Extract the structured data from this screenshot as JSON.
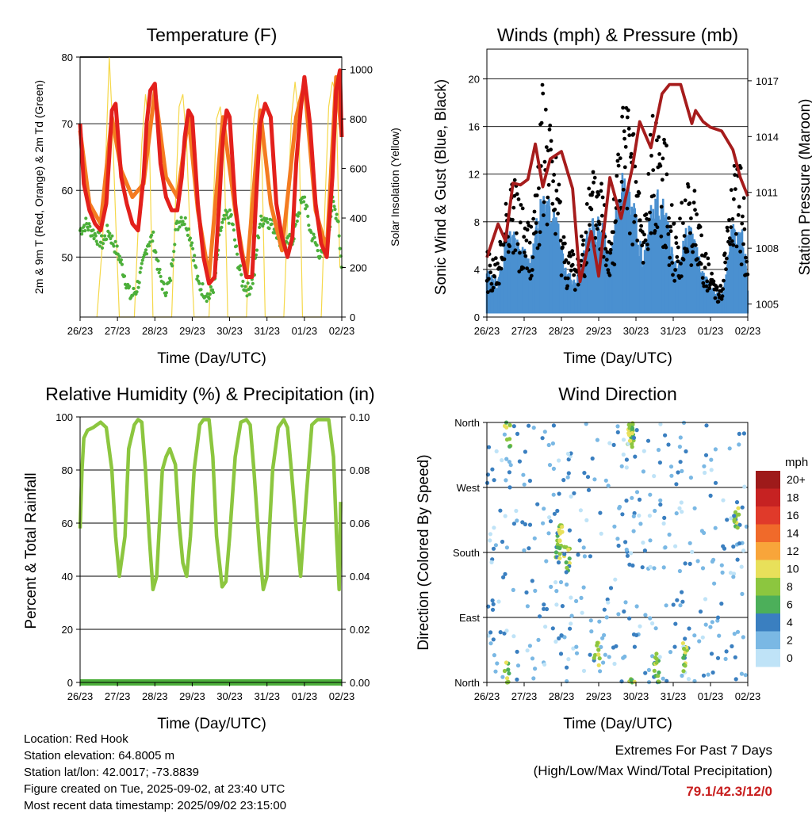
{
  "colors": {
    "t2m": "#e3201c",
    "t9m": "#f47b20",
    "td": "#4caf3a",
    "solar": "#f5d84a",
    "gust": "#000000",
    "wind": "#4a90d0",
    "pressure": "#a61c1c",
    "rh": "#8cc63f",
    "precip": "#4caf3a",
    "extremes": "#c81e1e"
  },
  "panels": {
    "temperature": {
      "title": "Temperature (F)",
      "xlabel": "Time (Day/UTC)",
      "ylabel_left": "2m & 9m T (Red, Orange) & 2m Td (Green)",
      "ylabel_right": "Solar Insolation (Yellow)"
    },
    "winds": {
      "title": "Winds (mph) & Pressure (mb)",
      "xlabel": "Time (Day/UTC)",
      "ylabel_left": "Sonic Wind & Gust (Blue, Black)",
      "ylabel_right": "Station Pressure (Maroon)"
    },
    "humidity": {
      "title": "Relative Humidity (%) & Precipitation (in)",
      "xlabel": "Time (Day/UTC)",
      "ylabel_left": "Percent & Total Rainfall"
    },
    "direction": {
      "title": "Wind Direction",
      "xlabel": "Time (Day/UTC)",
      "ylabel_left": "Direction (Colored By Speed)"
    }
  },
  "legend": {
    "title": "mph",
    "labels": [
      "20+",
      "18",
      "16",
      "14",
      "12",
      "10",
      "8",
      "6",
      "4",
      "2",
      "0"
    ],
    "colors": [
      "#9e1a1a",
      "#c62222",
      "#e03a2a",
      "#f06a2a",
      "#f8a53a",
      "#e8e05a",
      "#8cc63f",
      "#4caf5a",
      "#3a7fc0",
      "#7ab8e4",
      "#bfe3f7"
    ]
  },
  "info": {
    "location": "Location: Red Hook",
    "elevation": "Station elevation: 64.8005 m",
    "latlon": "Station lat/lon: 42.0017; -73.8839",
    "created": "Figure created on Tue, 2025-09-02, at 23:40 UTC",
    "recent": "Most recent data timestamp: 2025/09/02 23:15:00"
  },
  "extremes": {
    "heading": "Extremes For Past 7 Days",
    "subheading": "(High/Low/Max Wind/Total Precipitation)",
    "value": "79.1/42.3/12/0"
  },
  "chart_data": [
    {
      "type": "line",
      "title": "Temperature (F)",
      "xlabel": "Time (Day/UTC)",
      "x_ticks": [
        "26/23",
        "27/23",
        "28/23",
        "29/23",
        "30/23",
        "31/23",
        "01/23",
        "02/23"
      ],
      "xlim": [
        0,
        7
      ],
      "ylabel": "2m & 9m T (Red, Orange) & 2m Td (Green)",
      "ylim": [
        41,
        80
      ],
      "y_ticks": [
        "50",
        "60",
        "70",
        "80"
      ],
      "y_tick_values": [
        50,
        60,
        70,
        80
      ],
      "y2label": "Solar Insolation (Yellow)",
      "y2lim": [
        0,
        1050
      ],
      "y2_ticks": [
        "0",
        "200",
        "400",
        "600",
        "800",
        "1000"
      ],
      "y2_tick_values": [
        0,
        200,
        400,
        600,
        800,
        1000
      ],
      "grid": true,
      "series": [
        {
          "name": "2m T",
          "axis": "left",
          "x": [
            0,
            0.1,
            0.25,
            0.4,
            0.55,
            0.7,
            0.78,
            0.85,
            0.95,
            1.1,
            1.25,
            1.4,
            1.55,
            1.7,
            1.78,
            1.88,
            2.0,
            2.15,
            2.3,
            2.45,
            2.6,
            2.72,
            2.8,
            2.9,
            3.0,
            3.15,
            3.3,
            3.45,
            3.6,
            3.72,
            3.82,
            3.92,
            4.0,
            4.15,
            4.3,
            4.45,
            4.6,
            4.72,
            4.82,
            4.95,
            5.1,
            5.25,
            5.4,
            5.55,
            5.68,
            5.78,
            5.9,
            6.0,
            6.15,
            6.3,
            6.45,
            6.6,
            6.75,
            6.85,
            6.95,
            7.0
          ],
          "y": [
            70,
            61,
            57,
            55,
            54,
            58,
            65,
            72,
            73,
            62,
            58,
            55,
            54,
            62,
            70,
            75,
            76,
            64,
            59,
            57,
            57,
            62,
            68,
            72,
            71,
            58,
            50,
            46,
            47,
            58,
            68,
            72,
            71,
            58,
            51,
            47,
            47,
            60,
            70,
            73,
            71,
            58,
            53,
            50,
            53,
            64,
            72,
            77,
            70,
            58,
            52,
            50,
            62,
            75,
            78,
            68
          ]
        },
        {
          "name": "9m T",
          "axis": "left",
          "x": [
            0,
            0.25,
            0.55,
            0.85,
            1.1,
            1.4,
            1.7,
            2.0,
            2.3,
            2.6,
            2.9,
            3.15,
            3.45,
            3.82,
            4.15,
            4.45,
            4.82,
            5.1,
            5.4,
            5.78,
            6.0,
            6.3,
            6.6,
            6.85,
            7.0
          ],
          "y": [
            69,
            58,
            55,
            71,
            63,
            59,
            61,
            75,
            62,
            59,
            71,
            57,
            47,
            71,
            57,
            47,
            72,
            58,
            51,
            71,
            76,
            57,
            51,
            77,
            68
          ]
        },
        {
          "name": "2m Td",
          "axis": "left",
          "x": [
            0,
            0.15,
            0.3,
            0.45,
            0.6,
            0.75,
            0.9,
            1.05,
            1.2,
            1.35,
            1.5,
            1.65,
            1.8,
            1.95,
            2.1,
            2.25,
            2.4,
            2.55,
            2.7,
            2.85,
            3.0,
            3.15,
            3.3,
            3.45,
            3.6,
            3.75,
            3.9,
            4.05,
            4.2,
            4.35,
            4.5,
            4.65,
            4.8,
            4.95,
            5.1,
            5.25,
            5.4,
            5.55,
            5.7,
            5.85,
            6.0,
            6.15,
            6.3,
            6.45,
            6.6,
            6.75,
            6.9,
            7.0
          ],
          "y": [
            54,
            55,
            54,
            53,
            52,
            54,
            52,
            50,
            47,
            44,
            45,
            48,
            52,
            53,
            48,
            45,
            46,
            54,
            56,
            55,
            52,
            46,
            45,
            44,
            46,
            54,
            56,
            56,
            50,
            46,
            45,
            47,
            55,
            56,
            55,
            54,
            52,
            52,
            53,
            57,
            59,
            54,
            52,
            50,
            52,
            58,
            56,
            48
          ]
        },
        {
          "name": "Solar Insolation",
          "axis": "right",
          "x": [
            0.45,
            0.6,
            0.7,
            0.78,
            0.86,
            0.95,
            1.05,
            1.45,
            1.55,
            1.65,
            1.75,
            1.85,
            1.95,
            2.45,
            2.55,
            2.65,
            2.75,
            2.85,
            2.95,
            3.05,
            3.45,
            3.55,
            3.65,
            3.75,
            3.85,
            3.95,
            4.45,
            4.55,
            4.65,
            4.75,
            4.85,
            4.95,
            5.45,
            5.55,
            5.65,
            5.75,
            5.85,
            5.95,
            6.45,
            6.55,
            6.65,
            6.75,
            6.85,
            6.95
          ],
          "y": [
            0,
            300,
            700,
            1050,
            800,
            400,
            0,
            0,
            350,
            700,
            900,
            750,
            0,
            0,
            450,
            850,
            900,
            700,
            300,
            0,
            0,
            400,
            800,
            850,
            700,
            0,
            0,
            450,
            800,
            900,
            750,
            0,
            0,
            400,
            800,
            950,
            800,
            0,
            0,
            450,
            850,
            950,
            900,
            200
          ]
        }
      ]
    },
    {
      "type": "scatter",
      "title": "Winds (mph) & Pressure (mb)",
      "xlabel": "Time (Day/UTC)",
      "x_ticks": [
        "26/23",
        "27/23",
        "28/23",
        "29/23",
        "30/23",
        "31/23",
        "01/23",
        "02/23"
      ],
      "xlim": [
        0,
        7
      ],
      "ylabel": "Sonic Wind & Gust (Blue, Black)",
      "ylim": [
        0,
        22.5
      ],
      "y_ticks": [
        "0",
        "4",
        "8",
        "12",
        "16",
        "20"
      ],
      "y_tick_values": [
        0,
        4,
        8,
        12,
        16,
        20
      ],
      "y2label": "Station Pressure (Maroon)",
      "y2lim": [
        1004.3,
        1018.7
      ],
      "y2_ticks": [
        "1005",
        "1008",
        "1011",
        "1014",
        "1017"
      ],
      "y2_tick_values": [
        1005,
        1008,
        1011,
        1014,
        1017
      ],
      "grid": true,
      "series": [
        {
          "name": "Gust",
          "axis": "left",
          "envelope_x": [
            0,
            0.3,
            0.6,
            0.9,
            1.2,
            1.5,
            1.8,
            2.1,
            2.4,
            2.7,
            3.0,
            3.3,
            3.6,
            3.9,
            4.2,
            4.5,
            4.8,
            5.1,
            5.4,
            5.7,
            6.0,
            6.3,
            6.6,
            6.9,
            7.0
          ],
          "envelope_y": [
            6,
            5,
            14,
            10,
            8,
            20,
            16,
            7,
            5,
            11,
            14,
            8,
            19,
            17,
            8,
            20,
            15,
            7,
            13,
            9,
            4,
            3,
            14,
            12,
            4
          ]
        },
        {
          "name": "Sonic Wind",
          "axis": "left",
          "envelope_x": [
            0,
            0.3,
            0.6,
            0.9,
            1.2,
            1.5,
            1.8,
            2.1,
            2.4,
            2.7,
            3.0,
            3.3,
            3.6,
            3.9,
            4.2,
            4.5,
            4.8,
            5.1,
            5.4,
            5.7,
            6.0,
            6.3,
            6.6,
            6.9,
            7.0
          ],
          "envelope_y": [
            4,
            3,
            8,
            6,
            5,
            12,
            10,
            4,
            3,
            7,
            9,
            5,
            12,
            10,
            5,
            11,
            9,
            4,
            8,
            5,
            2.5,
            2,
            8,
            7,
            2
          ]
        },
        {
          "name": "Station Pressure",
          "axis": "right",
          "x": [
            0,
            0.3,
            0.5,
            0.7,
            0.9,
            1.1,
            1.3,
            1.5,
            1.7,
            2.0,
            2.3,
            2.5,
            2.8,
            3.0,
            3.3,
            3.6,
            3.9,
            4.1,
            4.4,
            4.7,
            4.9,
            5.2,
            5.5,
            5.6,
            5.8,
            6.0,
            6.3,
            6.6,
            6.8,
            7.0
          ],
          "y": [
            1007.5,
            1009.3,
            1008.4,
            1011.5,
            1011.4,
            1011.7,
            1013.6,
            1011.3,
            1012.8,
            1013.2,
            1011.2,
            1006.2,
            1008.9,
            1006.5,
            1011.8,
            1009.6,
            1012.3,
            1014.8,
            1013.4,
            1016.3,
            1016.8,
            1016.8,
            1014.7,
            1015.4,
            1014.8,
            1014.5,
            1014.3,
            1013.3,
            1011.8,
            1010.8
          ]
        }
      ]
    },
    {
      "type": "line",
      "title": "Relative Humidity (%) & Precipitation (in)",
      "xlabel": "Time (Day/UTC)",
      "x_ticks": [
        "26/23",
        "27/23",
        "28/23",
        "29/23",
        "30/23",
        "31/23",
        "01/23",
        "02/23"
      ],
      "xlim": [
        0,
        7
      ],
      "ylabel": "Percent & Total Rainfall",
      "ylim": [
        0,
        100
      ],
      "y_ticks": [
        "0",
        "20",
        "40",
        "60",
        "80",
        "100"
      ],
      "y_tick_values": [
        0,
        20,
        40,
        60,
        80,
        100
      ],
      "y2lim": [
        0,
        0.1
      ],
      "y2_ticks": [
        "0.00",
        "0.02",
        "0.04",
        "0.06",
        "0.08",
        "0.10"
      ],
      "y2_tick_values": [
        0,
        0.02,
        0.04,
        0.06,
        0.08,
        0.1
      ],
      "grid": true,
      "series": [
        {
          "name": "Relative Humidity",
          "axis": "left",
          "x": [
            0,
            0.05,
            0.1,
            0.2,
            0.35,
            0.55,
            0.7,
            0.85,
            0.95,
            1.05,
            1.2,
            1.3,
            1.45,
            1.55,
            1.65,
            1.75,
            1.85,
            1.95,
            2.05,
            2.2,
            2.3,
            2.4,
            2.55,
            2.65,
            2.75,
            2.85,
            2.95,
            3.05,
            3.2,
            3.3,
            3.45,
            3.55,
            3.65,
            3.8,
            3.9,
            4.0,
            4.15,
            4.3,
            4.45,
            4.55,
            4.65,
            4.8,
            4.9,
            5.0,
            5.15,
            5.3,
            5.45,
            5.55,
            5.65,
            5.8,
            5.9,
            6.05,
            6.2,
            6.35,
            6.5,
            6.65,
            6.78,
            6.86,
            6.93,
            6.97
          ],
          "y": [
            58,
            80,
            92,
            95,
            96,
            98,
            96,
            80,
            55,
            40,
            55,
            88,
            97,
            99,
            98,
            80,
            55,
            35,
            40,
            80,
            85,
            88,
            82,
            60,
            45,
            40,
            55,
            80,
            97,
            99,
            99,
            85,
            55,
            36,
            38,
            55,
            85,
            98,
            99,
            97,
            80,
            50,
            35,
            40,
            80,
            96,
            99,
            96,
            80,
            55,
            40,
            70,
            97,
            99,
            99,
            99,
            85,
            55,
            35,
            68
          ]
        },
        {
          "name": "Total Precipitation",
          "axis": "right",
          "x": [
            0,
            7
          ],
          "y": [
            0,
            0
          ]
        }
      ]
    },
    {
      "type": "scatter",
      "title": "Wind Direction",
      "xlabel": "Time (Day/UTC)",
      "x_ticks": [
        "26/23",
        "27/23",
        "28/23",
        "29/23",
        "30/23",
        "31/23",
        "01/23",
        "02/23"
      ],
      "xlim": [
        0,
        7
      ],
      "ylabel": "Direction (Colored By Speed)",
      "ylim": [
        0,
        360
      ],
      "y_ticks": [
        "North",
        "East",
        "South",
        "West",
        "North"
      ],
      "y_tick_values": [
        0,
        90,
        180,
        270,
        360
      ],
      "colorbar": {
        "title": "mph",
        "labels": [
          "20+",
          "18",
          "16",
          "14",
          "12",
          "10",
          "8",
          "6",
          "4",
          "2",
          "0"
        ]
      },
      "grid": true
    }
  ]
}
